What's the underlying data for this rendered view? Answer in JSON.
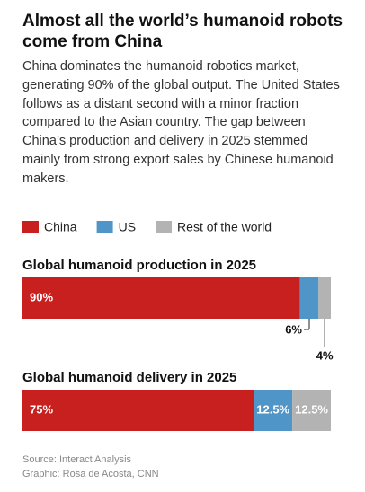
{
  "title": "Almost all the world’s humanoid robots come from China",
  "description": "China dominates the humanoid robotics market, generating 90% of the global output. The United States follows as a distant second with a minor fraction compared to the Asian country. The gap between China’s production and delivery in 2025 stemmed mainly from strong export sales by Chinese humanoid makers.",
  "chart_data": [
    {
      "type": "bar",
      "stacked": true,
      "title": "Global humanoid production in 2025",
      "xlim": [
        0,
        100
      ],
      "series": [
        {
          "name": "China",
          "color": "#c8201f",
          "values": [
            90
          ],
          "value_labels": [
            "90%"
          ]
        },
        {
          "name": "US",
          "color": "#5095c8",
          "values": [
            6
          ],
          "value_labels": [
            "6%"
          ]
        },
        {
          "name": "Rest of the world",
          "color": "#b3b3b3",
          "values": [
            4
          ],
          "value_labels": [
            "4%"
          ]
        }
      ]
    },
    {
      "type": "bar",
      "stacked": true,
      "title": "Global humanoid delivery in 2025",
      "xlim": [
        0,
        100
      ],
      "series": [
        {
          "color": "#c8201f",
          "values": [
            75
          ],
          "value_labels": [
            "75%"
          ]
        },
        {
          "color": "#5095c8",
          "values": [
            12.5
          ],
          "value_labels": [
            "12.5%"
          ]
        },
        {
          "color": "#b3b3b3",
          "values": [
            12.5
          ],
          "value_labels": [
            "12.5%"
          ]
        }
      ]
    }
  ],
  "source": "Source: Interact Analysis",
  "credit": "Graphic: Rosa de Acosta, CNN"
}
